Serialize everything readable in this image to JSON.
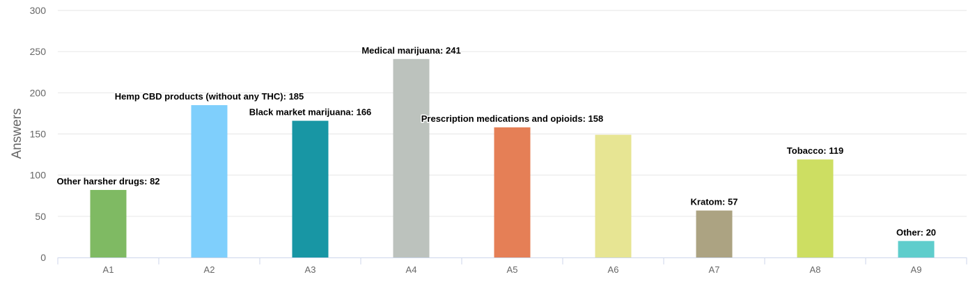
{
  "chart_data": {
    "type": "bar",
    "ylabel": "Answers",
    "xlabel": "",
    "ylim": [
      0,
      300
    ],
    "yticks": [
      0,
      50,
      100,
      150,
      200,
      250,
      300
    ],
    "grid": true,
    "categories": [
      "A1",
      "A2",
      "A3",
      "A4",
      "A5",
      "A6",
      "A7",
      "A8",
      "A9"
    ],
    "values": [
      82,
      185,
      166,
      241,
      158,
      149,
      57,
      119,
      20
    ],
    "data_labels": [
      "Other harsher drugs: 82",
      "Hemp CBD products (without any THC): 185",
      "Black market marijuana: 166",
      "Medical marijuana: 241",
      "Prescription medications and opioids: 158",
      "",
      "Kratom: 57",
      "Tobacco: 119",
      "Other: 20"
    ],
    "colors": [
      "#7fba63",
      "#7fcffc",
      "#1896a4",
      "#bcc2bd",
      "#e57f56",
      "#e7e593",
      "#aca382",
      "#cdde62",
      "#5fcdcc"
    ]
  }
}
